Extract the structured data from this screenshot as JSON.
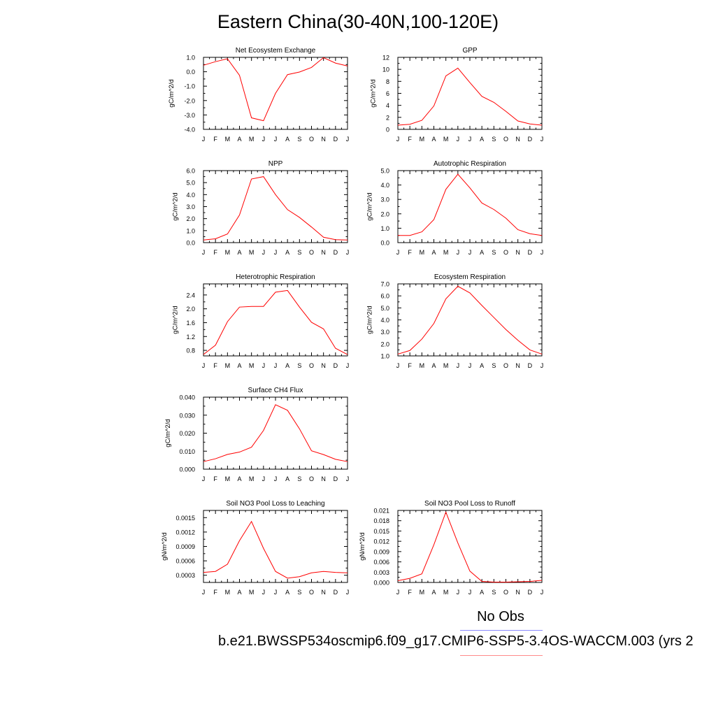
{
  "figure": {
    "title": "Eastern China(30-40N,100-120E)",
    "legend_label": "No Obs",
    "legend_colors": [
      "#8a8aff",
      "#ff8a8a"
    ],
    "caption": "b.e21.BWSSP534oscmip6.f09_g17.CMIP6-SSP5-3.4OS-WACCM.003 (yrs 2",
    "line_color": "#ff0000"
  },
  "chart_data": [
    {
      "type": "line",
      "title": "Net Ecosystem Exchange",
      "ylabel": "gC/m^2/d",
      "categories": [
        "J",
        "F",
        "M",
        "A",
        "M",
        "J",
        "J",
        "A",
        "S",
        "O",
        "N",
        "D",
        "J"
      ],
      "values": [
        0.45,
        0.7,
        0.9,
        -0.25,
        -3.2,
        -3.4,
        -1.5,
        -0.2,
        -0.02,
        0.3,
        0.98,
        0.6,
        0.4
      ],
      "ylim": [
        -4.0,
        1.0
      ],
      "yticks": [
        -4.0,
        -3.0,
        -2.0,
        -1.0,
        0.0,
        1.0
      ],
      "ytick_labels": [
        "-4.0",
        "-3.0",
        "-2.0",
        "-1.0",
        "0.0",
        "1.0"
      ],
      "yminor": [
        -3.5,
        -2.5,
        -1.5,
        -0.5,
        0.5
      ]
    },
    {
      "type": "line",
      "title": "GPP",
      "ylabel": "gC/m^2/d",
      "categories": [
        "J",
        "F",
        "M",
        "A",
        "M",
        "J",
        "J",
        "A",
        "S",
        "O",
        "N",
        "D",
        "J"
      ],
      "values": [
        0.7,
        0.85,
        1.5,
        3.9,
        8.9,
        10.2,
        7.8,
        5.5,
        4.5,
        3.0,
        1.4,
        0.9,
        0.7
      ],
      "ylim": [
        0,
        12
      ],
      "yticks": [
        0,
        2,
        4,
        6,
        8,
        10,
        12
      ],
      "ytick_labels": [
        "0",
        "2",
        "4",
        "6",
        "8",
        "10",
        "12"
      ],
      "yminor": [
        1,
        3,
        5,
        7,
        9,
        11
      ]
    },
    {
      "type": "line",
      "title": "NPP",
      "ylabel": "gC/m^2/d",
      "categories": [
        "J",
        "F",
        "M",
        "A",
        "M",
        "J",
        "J",
        "A",
        "S",
        "O",
        "N",
        "D",
        "J"
      ],
      "values": [
        0.22,
        0.32,
        0.72,
        2.3,
        5.3,
        5.5,
        4.0,
        2.75,
        2.1,
        1.3,
        0.45,
        0.25,
        0.22
      ],
      "ylim": [
        0,
        6
      ],
      "yticks": [
        0,
        1,
        2,
        3,
        4,
        5,
        6
      ],
      "ytick_labels": [
        "0.0",
        "1.0",
        "2.0",
        "3.0",
        "4.0",
        "5.0",
        "6.0"
      ],
      "yminor": [
        0.5,
        1.5,
        2.5,
        3.5,
        4.5,
        5.5
      ]
    },
    {
      "type": "line",
      "title": "Autotrophic Respiration",
      "ylabel": "gC/m^2/d",
      "categories": [
        "J",
        "F",
        "M",
        "A",
        "M",
        "J",
        "J",
        "A",
        "S",
        "O",
        "N",
        "D",
        "J"
      ],
      "values": [
        0.5,
        0.5,
        0.75,
        1.6,
        3.7,
        4.75,
        3.8,
        2.75,
        2.3,
        1.7,
        0.9,
        0.62,
        0.5
      ],
      "ylim": [
        0,
        5
      ],
      "yticks": [
        0,
        1,
        2,
        3,
        4,
        5
      ],
      "ytick_labels": [
        "0.0",
        "1.0",
        "2.0",
        "3.0",
        "4.0",
        "5.0"
      ],
      "yminor": [
        0.5,
        1.5,
        2.5,
        3.5,
        4.5
      ]
    },
    {
      "type": "line",
      "title": "Heterotrophic Respiration",
      "ylabel": "gC/m^2/d",
      "categories": [
        "J",
        "F",
        "M",
        "A",
        "M",
        "J",
        "J",
        "A",
        "S",
        "O",
        "N",
        "D",
        "J"
      ],
      "values": [
        0.68,
        0.95,
        1.63,
        2.05,
        2.07,
        2.07,
        2.48,
        2.53,
        2.05,
        1.61,
        1.42,
        0.86,
        0.68
      ],
      "ylim": [
        0.64,
        2.72
      ],
      "yticks": [
        0.8,
        1.2,
        1.6,
        2.0,
        2.4
      ],
      "ytick_labels": [
        "0.8",
        "1.2",
        "1.6",
        "2.0",
        "2.4"
      ],
      "yminor": [
        1.0,
        1.4,
        1.8,
        2.2,
        2.6
      ]
    },
    {
      "type": "line",
      "title": "Ecosystem Respiration",
      "ylabel": "gC/m^2/d",
      "categories": [
        "J",
        "F",
        "M",
        "A",
        "M",
        "J",
        "J",
        "A",
        "S",
        "O",
        "N",
        "D",
        "J"
      ],
      "values": [
        1.15,
        1.45,
        2.4,
        3.7,
        5.75,
        6.8,
        6.25,
        5.2,
        4.2,
        3.2,
        2.3,
        1.5,
        1.15
      ],
      "ylim": [
        1.0,
        7.0
      ],
      "yticks": [
        1,
        2,
        3,
        4,
        5,
        6,
        7
      ],
      "ytick_labels": [
        "1.0",
        "2.0",
        "3.0",
        "4.0",
        "5.0",
        "6.0",
        "7.0"
      ],
      "yminor": [
        1.5,
        2.5,
        3.5,
        4.5,
        5.5,
        6.5
      ]
    },
    {
      "type": "line",
      "title": "Surface CH4 Flux",
      "ylabel": "gC/m^2/d",
      "categories": [
        "J",
        "F",
        "M",
        "A",
        "M",
        "J",
        "J",
        "A",
        "S",
        "O",
        "N",
        "D",
        "J"
      ],
      "values": [
        0.0042,
        0.0058,
        0.0082,
        0.0095,
        0.0122,
        0.0215,
        0.0358,
        0.0327,
        0.0224,
        0.0102,
        0.0081,
        0.0055,
        0.0042
      ],
      "ylim": [
        0,
        0.04
      ],
      "yticks": [
        0,
        0.01,
        0.02,
        0.03,
        0.04
      ],
      "ytick_labels": [
        "0.000",
        "0.010",
        "0.020",
        "0.030",
        "0.040"
      ],
      "yminor": [
        0.005,
        0.015,
        0.025,
        0.035
      ]
    },
    {
      "type": "line",
      "title": "Soil NO3 Pool Loss to Leaching",
      "ylabel": "gN/m^2/d",
      "categories": [
        "J",
        "F",
        "M",
        "A",
        "M",
        "J",
        "J",
        "A",
        "S",
        "O",
        "N",
        "D",
        "J"
      ],
      "values": [
        0.00036,
        0.00038,
        0.00053,
        0.00102,
        0.00142,
        0.00086,
        0.00038,
        0.00024,
        0.00027,
        0.00035,
        0.00038,
        0.00036,
        0.00035
      ],
      "ylim": [
        0.00015,
        0.00165
      ],
      "yticks": [
        0.0003,
        0.0006,
        0.0009,
        0.0012,
        0.0015
      ],
      "ytick_labels": [
        "0.0003",
        "0.0006",
        "0.0009",
        "0.0012",
        "0.0015"
      ],
      "yminor": [
        0.00045,
        0.00075,
        0.00105,
        0.00135
      ]
    },
    {
      "type": "line",
      "title": "Soil NO3 Pool Loss to Runoff",
      "ylabel": "gN/m^2/d",
      "categories": [
        "J",
        "F",
        "M",
        "A",
        "M",
        "J",
        "J",
        "A",
        "S",
        "O",
        "N",
        "D",
        "J"
      ],
      "values": [
        0.0005,
        0.0012,
        0.0025,
        0.011,
        0.0205,
        0.0115,
        0.0033,
        0.0003,
        0.0001,
        0.0001,
        0.0002,
        0.0003,
        0.0006
      ],
      "ylim": [
        0,
        0.021
      ],
      "yticks": [
        0,
        0.003,
        0.006,
        0.009,
        0.012,
        0.015,
        0.018,
        0.021
      ],
      "ytick_labels": [
        "0.000",
        "0.003",
        "0.006",
        "0.009",
        "0.012",
        "0.015",
        "0.018",
        "0.021"
      ],
      "yminor": [
        0.0015,
        0.0045,
        0.0075,
        0.0105,
        0.0135,
        0.0165,
        0.0195
      ]
    }
  ]
}
